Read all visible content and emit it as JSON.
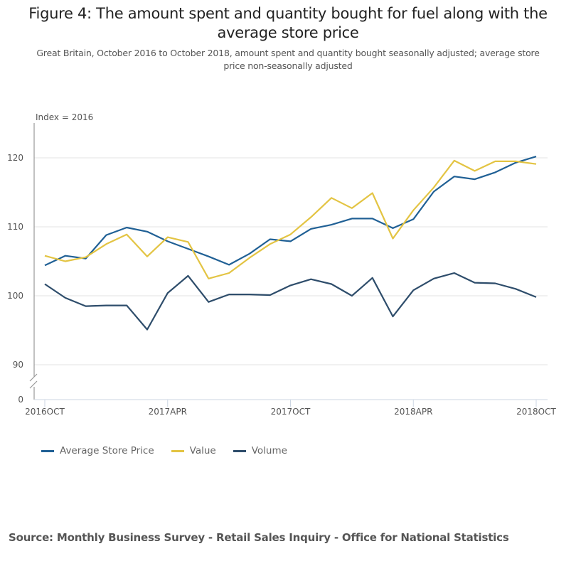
{
  "title": "Figure 4: The amount spent and quantity bought for fuel along with the average store price",
  "subtitle": "Great Britain, October 2016 to October 2018, amount spent and quantity bought seasonally adjusted; average store price non-seasonally adjusted",
  "source": "Source: Monthly Business Survey - Retail Sales Inquiry - Office for National Statistics",
  "chart_data": {
    "type": "line",
    "title": "Figure 4: The amount spent and quantity bought for fuel along with the average store price",
    "ylabel": "Index = 2016",
    "xlabel": "",
    "x": [
      "2016OCT",
      "2016NOV",
      "2016DEC",
      "2017JAN",
      "2017FEB",
      "2017MAR",
      "2017APR",
      "2017MAY",
      "2017JUN",
      "2017JUL",
      "2017AUG",
      "2017SEP",
      "2017OCT",
      "2017NOV",
      "2017DEC",
      "2018JAN",
      "2018FEB",
      "2018MAR",
      "2018APR",
      "2018MAY",
      "2018JUN",
      "2018JUL",
      "2018AUG",
      "2018SEP",
      "2018OCT"
    ],
    "xticks": [
      "2016OCT",
      "2017APR",
      "2017OCT",
      "2018APR",
      "2018OCT"
    ],
    "yticks": [
      0,
      90,
      100,
      110,
      120
    ],
    "ylim": [
      86,
      125
    ],
    "axis_break": true,
    "grid": true,
    "legend_position": "bottom-left",
    "series": [
      {
        "name": "Average Store Price",
        "color": "#206095",
        "values": [
          104.4,
          105.8,
          105.4,
          108.8,
          109.9,
          109.3,
          107.9,
          106.8,
          105.7,
          104.5,
          106.1,
          108.2,
          107.9,
          109.7,
          110.3,
          111.2,
          111.2,
          109.8,
          111.1,
          115.1,
          117.3,
          116.9,
          117.9,
          119.3,
          120.2
        ]
      },
      {
        "name": "Value",
        "color": "#e3c443",
        "values": [
          105.8,
          105.0,
          105.6,
          107.5,
          108.9,
          105.7,
          108.5,
          107.8,
          102.5,
          103.3,
          105.5,
          107.5,
          108.9,
          111.4,
          114.2,
          112.7,
          114.9,
          108.3,
          112.4,
          115.7,
          119.6,
          118.1,
          119.5,
          119.5,
          119.1
        ]
      },
      {
        "name": "Volume",
        "color": "#2e4d6b",
        "values": [
          101.7,
          99.7,
          98.5,
          98.6,
          98.6,
          95.1,
          100.4,
          102.9,
          99.1,
          100.2,
          100.2,
          100.1,
          101.5,
          102.4,
          101.7,
          100.0,
          102.6,
          97.0,
          100.8,
          102.5,
          103.3,
          101.9,
          101.8,
          101.0,
          99.8
        ]
      }
    ]
  }
}
